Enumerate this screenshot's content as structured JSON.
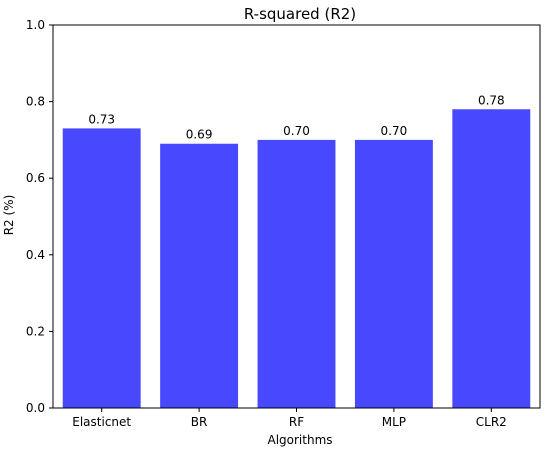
{
  "chart_data": {
    "type": "bar",
    "title": "R-squared (R2)",
    "xlabel": "Algorithms",
    "ylabel": "R2 (%)",
    "categories": [
      "Elasticnet",
      "BR",
      "RF",
      "MLP",
      "CLR2"
    ],
    "values": [
      0.73,
      0.69,
      0.7,
      0.7,
      0.78
    ],
    "data_labels": [
      "0.73",
      "0.69",
      "0.70",
      "0.70",
      "0.78"
    ],
    "ylim": [
      0.0,
      1.0
    ],
    "yticks": [
      0.0,
      0.2,
      0.4,
      0.6,
      0.8,
      1.0
    ],
    "ytick_labels": [
      "0.0",
      "0.2",
      "0.4",
      "0.6",
      "0.8",
      "1.0"
    ],
    "bar_color": "#4848ff",
    "grid": false,
    "legend": "none"
  }
}
